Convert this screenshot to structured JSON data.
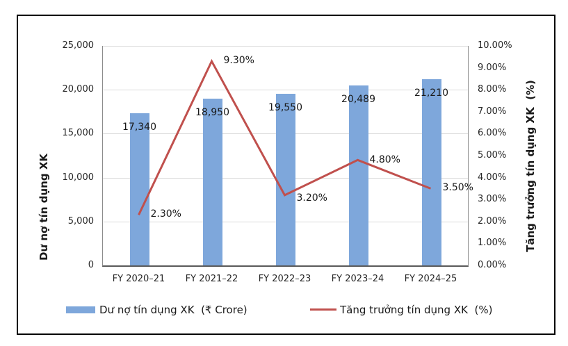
{
  "chart_data": {
    "type": "combo-bar-line",
    "categories": [
      "FY 2020–21",
      "FY 2021–22",
      "FY 2022–23",
      "FY 2023–24",
      "FY 2024–25"
    ],
    "series": [
      {
        "name": "Dư nợ tín dụng XK  (₹ Crore)",
        "type": "bar",
        "axis": "left",
        "values": [
          17340,
          18950,
          19550,
          20489,
          21210
        ],
        "data_labels": [
          "17,340",
          "18,950",
          "19,550",
          "20,489",
          "21,210"
        ],
        "color": "#7EA7DB"
      },
      {
        "name": "Tăng trưởng tín dụng XK  (%)",
        "type": "line",
        "axis": "right",
        "values": [
          2.3,
          9.3,
          3.2,
          4.8,
          3.5
        ],
        "data_labels": [
          "2.30%",
          "9.30%",
          "3.20%",
          "4.80%",
          "3.50%"
        ],
        "color": "#C0504D"
      }
    ],
    "left_axis": {
      "title": "Dư nợ tín dụng XK",
      "min": 0,
      "max": 25000,
      "step": 5000,
      "tick_labels": [
        "0",
        "5,000",
        "10,000",
        "15,000",
        "20,000",
        "25,000"
      ]
    },
    "right_axis": {
      "title": "Tăng trưởng tín dụng XK  (%)",
      "min": 0,
      "max": 10,
      "step": 1,
      "tick_labels": [
        "0.00%",
        "1.00%",
        "2.00%",
        "3.00%",
        "4.00%",
        "5.00%",
        "6.00%",
        "7.00%",
        "8.00%",
        "9.00%",
        "10.00%"
      ]
    },
    "grid": true,
    "legend_position": "bottom",
    "title": "",
    "colors": {
      "bar": "#7EA7DB",
      "line": "#C0504D",
      "gridline": "#D9D9D9",
      "axis_line": "#8C8C8C",
      "text": "#262626",
      "frame_border": "#000000",
      "background": "#FFFFFF"
    }
  }
}
